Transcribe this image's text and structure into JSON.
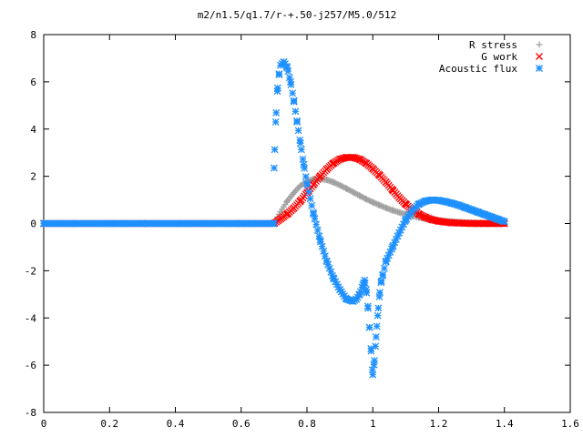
{
  "chart_data": {
    "type": "scatter",
    "title": "m2/n1.5/q1.7/r-+.50-j257/M5.0/512",
    "xlabel": "",
    "ylabel": "",
    "xlim": [
      0,
      1.6
    ],
    "ylim": [
      -8,
      8
    ],
    "x_ticks": [
      "0",
      "0.2",
      "0.4",
      "0.6",
      "0.8",
      "1",
      "1.2",
      "1.4",
      "1.6"
    ],
    "y_ticks": [
      "8",
      "6",
      "4",
      "2",
      "0",
      "-2",
      "-4",
      "-6",
      "-8"
    ],
    "grid": false,
    "legend_position": "top-right",
    "series": [
      {
        "name": "R stress",
        "color": "#a0a0a0",
        "marker": "plus",
        "x": [
          0.0,
          0.1,
          0.2,
          0.3,
          0.4,
          0.5,
          0.6,
          0.7,
          0.72,
          0.74,
          0.76,
          0.78,
          0.8,
          0.82,
          0.84,
          0.86,
          0.88,
          0.9,
          0.92,
          0.94,
          0.96,
          0.98,
          1.0,
          1.02,
          1.04,
          1.06,
          1.08,
          1.1,
          1.12,
          1.14,
          1.16,
          1.18,
          1.2,
          1.22,
          1.24,
          1.26,
          1.28,
          1.3,
          1.32,
          1.34,
          1.36,
          1.38,
          1.4
        ],
        "y": [
          0.0,
          0.0,
          0.0,
          0.0,
          0.0,
          0.0,
          0.0,
          0.0,
          0.5,
          0.95,
          1.3,
          1.6,
          1.78,
          1.88,
          1.9,
          1.85,
          1.75,
          1.62,
          1.48,
          1.33,
          1.18,
          1.03,
          0.9,
          0.78,
          0.66,
          0.56,
          0.47,
          0.39,
          0.32,
          0.26,
          0.21,
          0.17,
          0.13,
          0.1,
          0.08,
          0.06,
          0.04,
          0.03,
          0.02,
          0.01,
          0.01,
          0.0,
          0.0
        ]
      },
      {
        "name": "G work",
        "color": "#ff0000",
        "marker": "cross",
        "x": [
          0.0,
          0.1,
          0.2,
          0.3,
          0.4,
          0.5,
          0.6,
          0.7,
          0.72,
          0.74,
          0.76,
          0.78,
          0.8,
          0.82,
          0.84,
          0.86,
          0.88,
          0.9,
          0.92,
          0.94,
          0.96,
          0.98,
          1.0,
          1.02,
          1.04,
          1.06,
          1.08,
          1.1,
          1.12,
          1.14,
          1.16,
          1.18,
          1.2,
          1.22,
          1.24,
          1.26,
          1.28,
          1.3,
          1.32,
          1.34,
          1.36,
          1.38,
          1.4
        ],
        "y": [
          0.0,
          0.0,
          0.0,
          0.0,
          0.0,
          0.0,
          0.0,
          0.0,
          0.2,
          0.4,
          0.65,
          0.95,
          1.3,
          1.65,
          2.0,
          2.3,
          2.55,
          2.72,
          2.8,
          2.8,
          2.72,
          2.55,
          2.32,
          2.05,
          1.75,
          1.42,
          1.1,
          0.82,
          0.58,
          0.4,
          0.26,
          0.16,
          0.1,
          0.06,
          0.03,
          0.02,
          0.01,
          0.0,
          0.0,
          0.0,
          0.0,
          0.0,
          0.0
        ]
      },
      {
        "name": "Acoustic flux",
        "color": "#1e90ff",
        "marker": "star",
        "x": [
          0.0,
          0.1,
          0.2,
          0.3,
          0.4,
          0.5,
          0.6,
          0.7,
          0.7,
          0.705,
          0.71,
          0.715,
          0.72,
          0.73,
          0.74,
          0.75,
          0.76,
          0.77,
          0.78,
          0.79,
          0.8,
          0.82,
          0.84,
          0.86,
          0.88,
          0.9,
          0.92,
          0.94,
          0.95,
          0.96,
          0.97,
          0.975,
          0.98,
          0.985,
          0.99,
          0.995,
          1.0,
          1.005,
          1.01,
          1.015,
          1.02,
          1.025,
          1.03,
          1.04,
          1.06,
          1.08,
          1.1,
          1.12,
          1.14,
          1.16,
          1.18,
          1.2,
          1.22,
          1.24,
          1.26,
          1.28,
          1.3,
          1.32,
          1.34,
          1.36,
          1.38,
          1.4
        ],
        "y": [
          0.0,
          0.0,
          0.0,
          0.0,
          0.0,
          0.0,
          0.0,
          0.0,
          2.35,
          4.3,
          5.6,
          6.3,
          6.7,
          6.85,
          6.6,
          6.0,
          5.2,
          4.3,
          3.4,
          2.5,
          1.7,
          0.4,
          -0.7,
          -1.6,
          -2.3,
          -2.8,
          -3.2,
          -3.3,
          -3.2,
          -3.0,
          -2.6,
          -2.4,
          -2.8,
          -3.5,
          -4.4,
          -5.4,
          -6.4,
          -5.8,
          -4.8,
          -3.9,
          -3.1,
          -2.5,
          -2.2,
          -1.6,
          -1.0,
          -0.4,
          0.15,
          0.55,
          0.82,
          0.95,
          1.0,
          0.98,
          0.93,
          0.86,
          0.78,
          0.68,
          0.58,
          0.48,
          0.38,
          0.28,
          0.18,
          0.08
        ]
      }
    ]
  }
}
